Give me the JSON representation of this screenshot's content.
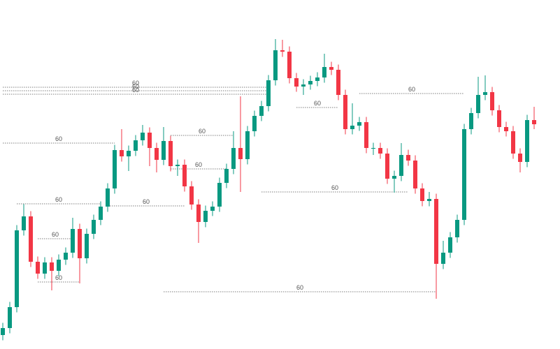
{
  "chart_data": {
    "type": "candlestick",
    "up_color": "#089981",
    "down_color": "#f23645",
    "ylim": [
      0,
      100
    ],
    "xlim": [
      -0.4,
      79.7
    ],
    "open": [
      4,
      6,
      12,
      34,
      38,
      25,
      21.6,
      24.8,
      22.4,
      25.6,
      27.6,
      34.4,
      26,
      33,
      37,
      40.8,
      46,
      57,
      55.2,
      56.8,
      59.8,
      62,
      57.6,
      54.2,
      59.6,
      52.4,
      52.8,
      46.6,
      41.4,
      36.4,
      39.6,
      40.8,
      47.6,
      51.6,
      57.6,
      54.4,
      62.4,
      66.8,
      69.6,
      77,
      85.6,
      85.2,
      77.6,
      75.2,
      75.8,
      76.8,
      77.8,
      80.8,
      80,
      72.8,
      63,
      64,
      65,
      57.6,
      57.6,
      56,
      48.8,
      49.6,
      55.6,
      54,
      46,
      42.4,
      43,
      24.4,
      27.6,
      32,
      37,
      63,
      67.6,
      72.8,
      73.6,
      68.4,
      63.6,
      62.4,
      56,
      53.6,
      65.6
    ],
    "high": [
      7.5,
      13.5,
      35.5,
      41.5,
      39.5,
      26.5,
      26.3,
      26.3,
      27.1,
      29.1,
      37.6,
      35.9,
      34.5,
      38.5,
      42.3,
      47.5,
      58.5,
      63,
      58.3,
      61.3,
      64.2,
      63.5,
      59.1,
      63.6,
      61.1,
      54.3,
      54.3,
      48.1,
      42.9,
      41.1,
      42.3,
      49.1,
      53.1,
      62.4,
      72.4,
      63.9,
      68.3,
      71.1,
      78.5,
      88.8,
      88.6,
      86.7,
      79.1,
      77.3,
      78.3,
      79.3,
      84.6,
      82.3,
      81.5,
      74.3,
      70.4,
      66.5,
      66.5,
      59.1,
      59.1,
      57.5,
      51.1,
      59,
      57.1,
      55.5,
      47.5,
      45,
      44.5,
      31,
      33.5,
      38.5,
      64.5,
      69.1,
      78,
      78.4,
      75.1,
      69.9,
      65.1,
      63.9,
      57.5,
      67.1,
      69.4
    ],
    "low": [
      2.5,
      4.5,
      10.5,
      32.5,
      23.5,
      20.1,
      20.1,
      16.8,
      20.9,
      24.1,
      26.1,
      18.8,
      24.5,
      31.5,
      35.5,
      39.3,
      44.5,
      53.7,
      51,
      55.3,
      58.3,
      52.4,
      50.6,
      52.7,
      50.9,
      49.6,
      45.1,
      39.9,
      30.4,
      34.9,
      38.1,
      39.3,
      46.1,
      50.1,
      45,
      52.9,
      60.9,
      65.3,
      68.1,
      75.5,
      83.7,
      76.1,
      73.7,
      72.8,
      74.3,
      75.3,
      76.3,
      78.5,
      71.3,
      61.5,
      61.5,
      62.5,
      56.1,
      55.6,
      54.5,
      47.3,
      44.8,
      48.1,
      52.5,
      44.5,
      40.9,
      40.9,
      14.4,
      22.9,
      26.1,
      30.5,
      35.5,
      61.5,
      66.1,
      71.3,
      66.9,
      62.1,
      60.9,
      54.5,
      50.6,
      52.1,
      63
    ],
    "close": [
      6,
      12,
      34,
      38,
      25,
      21.6,
      24.8,
      22.4,
      25.6,
      27.6,
      34.4,
      26,
      33,
      37,
      40.8,
      46,
      57,
      55.2,
      56.8,
      59.8,
      62,
      57.6,
      54.2,
      59.6,
      52.4,
      52.8,
      46.6,
      41.4,
      36.4,
      39.6,
      40.8,
      47.6,
      51.6,
      57.6,
      54.4,
      62.4,
      66.8,
      69.6,
      77,
      85.6,
      85.2,
      77.6,
      75.2,
      75.8,
      76.8,
      77.8,
      80.8,
      80,
      72.8,
      63,
      64,
      65,
      57.6,
      57.6,
      56,
      48.8,
      49.6,
      55.6,
      54,
      46,
      42.4,
      43,
      24.4,
      27.6,
      32,
      37,
      63,
      67.6,
      72.8,
      73.6,
      68.4,
      63.6,
      62.4,
      56,
      53.6,
      65.6,
      64.4
    ],
    "annotations": [
      {
        "level": 75,
        "start": 0,
        "end": 38,
        "label": "60"
      },
      {
        "level": 74,
        "start": 0,
        "end": 38,
        "label": "60"
      },
      {
        "level": 73,
        "start": 0,
        "end": 38,
        "label": "60"
      },
      {
        "level": 59,
        "start": 0,
        "end": 16,
        "label": "60"
      },
      {
        "level": 73.2,
        "start": 51,
        "end": 66,
        "label": "60"
      },
      {
        "level": 69.2,
        "start": 42,
        "end": 48,
        "label": "60"
      },
      {
        "level": 61.2,
        "start": 24,
        "end": 33,
        "label": "60"
      },
      {
        "level": 51.6,
        "start": 24,
        "end": 32,
        "label": "60"
      },
      {
        "level": 45,
        "start": 37,
        "end": 58,
        "label": "60"
      },
      {
        "level": 41.6,
        "start": 2,
        "end": 14,
        "label": "60"
      },
      {
        "level": 41,
        "start": 15,
        "end": 26,
        "label": "60"
      },
      {
        "level": 16.4,
        "start": 23,
        "end": 62,
        "label": "60"
      },
      {
        "level": 19.2,
        "start": 5,
        "end": 11,
        "label": "60"
      },
      {
        "level": 31.6,
        "start": 5,
        "end": 10,
        "label": "60"
      }
    ]
  }
}
